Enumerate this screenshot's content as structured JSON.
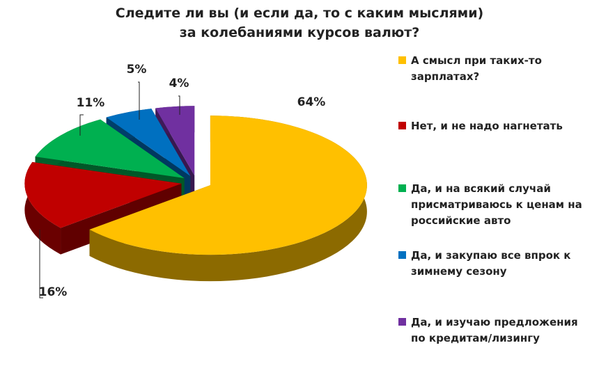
{
  "chart_data": {
    "type": "pie",
    "title": [
      "Следите ли вы (и если да, то с каким мыслями)",
      "за колебаниями курсов валют?"
    ],
    "categories": [
      "А смысл при таких-то зарплатах?",
      "Нет, и не надо нагнетать",
      "Да, и на всякий случай присматриваюсь к ценам на российские авто",
      "Да, и закупаю все впрок к зимнему сезону",
      "Да, и изучаю предложения по кредитам/лизингу"
    ],
    "values": [
      64,
      16,
      11,
      5,
      4
    ],
    "value_labels": [
      "64%",
      "16%",
      "11%",
      "5%",
      "4%"
    ],
    "colors": [
      "#FFC000",
      "#C00000",
      "#00B050",
      "#0070C0",
      "#7030A0"
    ],
    "legend": "right"
  }
}
